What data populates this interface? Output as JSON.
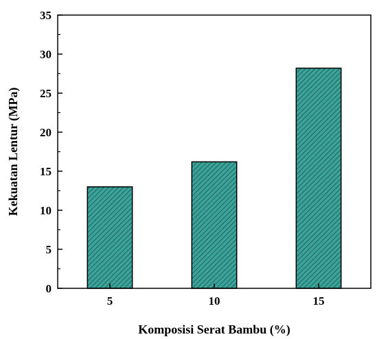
{
  "chart_data": {
    "type": "bar",
    "categories": [
      "5",
      "10",
      "15"
    ],
    "values": [
      13.0,
      16.2,
      28.2
    ],
    "title": "",
    "xlabel": "Komposisi Serat Bambu (%)",
    "ylabel": "Kekuatan Lentur (MPa)",
    "ylim": [
      0,
      35
    ],
    "yticks": [
      0,
      5,
      10,
      15,
      20,
      25,
      30,
      35
    ],
    "grid": false,
    "legend": "none",
    "bar_color": "#3aa39a",
    "hatch_color": "#1e4f4b",
    "hatch": "diagonal"
  }
}
